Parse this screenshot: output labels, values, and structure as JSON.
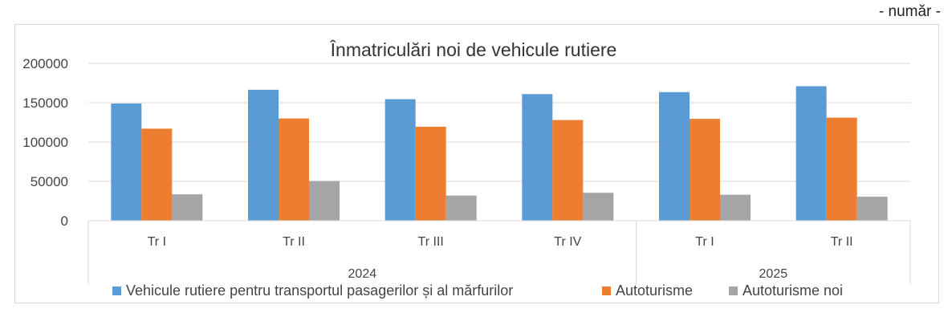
{
  "unit_label": "- număr -",
  "chart_data": {
    "type": "bar",
    "title": "Înmatriculări noi de vehicule rutiere",
    "categories": [
      "Tr I",
      "Tr II",
      "Tr III",
      "Tr IV",
      "Tr I",
      "Tr II"
    ],
    "groups": [
      {
        "label": "2024",
        "count": 4
      },
      {
        "label": "2025",
        "count": 2
      }
    ],
    "ylim": [
      0,
      200000
    ],
    "yticks": [
      "0",
      "50000",
      "100000",
      "150000",
      "200000"
    ],
    "series": [
      {
        "name": "Vehicule rutiere pentru transportul pasagerilor și al mărfurilor",
        "color": "#5B9BD5",
        "values": [
          149000,
          166500,
          154500,
          161000,
          163500,
          171000
        ]
      },
      {
        "name": "Autoturisme",
        "color": "#ED7D31",
        "values": [
          117000,
          130000,
          119500,
          128000,
          129500,
          131000
        ]
      },
      {
        "name": "Autoturisme noi",
        "color": "#A5A5A5",
        "values": [
          33500,
          50500,
          32000,
          35500,
          33000,
          30500
        ]
      }
    ],
    "grid": true,
    "legend": "bottom"
  }
}
